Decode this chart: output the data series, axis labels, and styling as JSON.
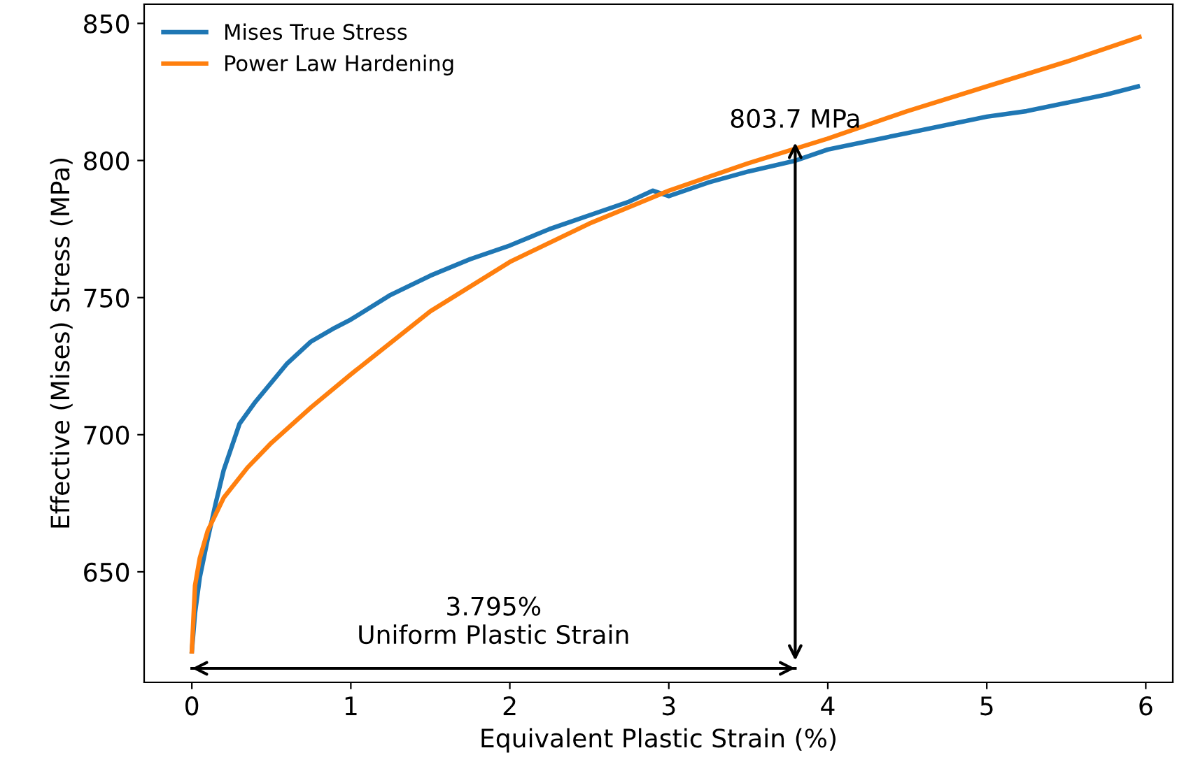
{
  "chart_data": {
    "type": "line",
    "xlabel": "Equivalent Plastic Strain (%)",
    "ylabel": "Effective (Mises) Stress (MPa)",
    "xlim": [
      -0.3,
      6.17
    ],
    "ylim": [
      609.7,
      857
    ],
    "xticks": [
      0,
      1,
      2,
      3,
      4,
      5,
      6
    ],
    "yticks": [
      650,
      700,
      750,
      800,
      850
    ],
    "grid": false,
    "legend": "top left",
    "marker": "none",
    "line_style": "solid",
    "series": [
      {
        "name": "Mises True Stress",
        "color": "#1f77b4",
        "x": [
          0,
          0.02,
          0.05,
          0.1,
          0.15,
          0.2,
          0.3,
          0.4,
          0.5,
          0.6,
          0.75,
          0.9,
          1.0,
          1.25,
          1.5,
          1.75,
          2.0,
          2.25,
          2.5,
          2.75,
          2.9,
          3.0,
          3.25,
          3.5,
          3.8,
          4.0,
          4.25,
          4.5,
          4.75,
          5.0,
          5.25,
          5.5,
          5.75,
          5.95
        ],
        "values": [
          621,
          635,
          648,
          662,
          675,
          687,
          704,
          712,
          719,
          726,
          734,
          739,
          742,
          751,
          758,
          764,
          769,
          775,
          780,
          785,
          789,
          787,
          792,
          796,
          800,
          804,
          807,
          810,
          813,
          816,
          818,
          821,
          824,
          827
        ]
      },
      {
        "type": "line",
        "color": "#000000",
        "x": [
          0,
          3.795
        ],
        "values": [
          614.8,
          614.8
        ]
      },
      {
        "name": "Power Law Hardening",
        "color": "#ff7f0e",
        "x": [
          0,
          0.02,
          0.05,
          0.1,
          0.2,
          0.35,
          0.5,
          0.75,
          1.0,
          1.5,
          2.0,
          2.5,
          3.0,
          3.5,
          4.0,
          4.5,
          5.0,
          5.5,
          5.96
        ],
        "values": [
          621,
          645,
          655,
          665,
          677,
          688,
          697,
          710,
          722,
          745,
          763,
          777,
          789,
          799,
          808,
          818,
          827,
          836,
          845
        ]
      }
    ],
    "annotations": [
      {
        "text": "803.7 MPa",
        "x": 3.795,
        "y": 803.7
      },
      "3.795%\nUniform Plastic Strain"
    ]
  }
}
